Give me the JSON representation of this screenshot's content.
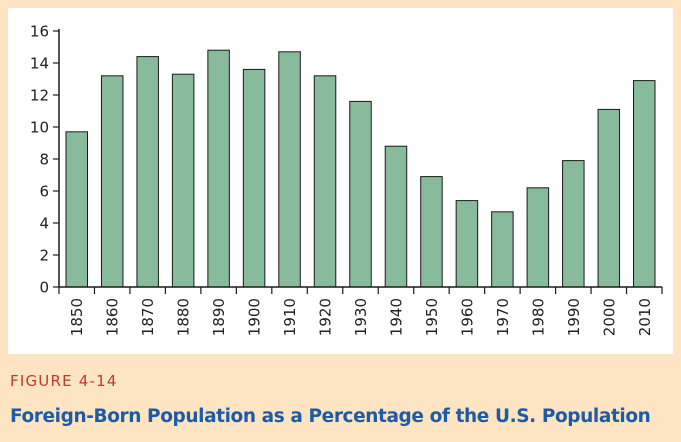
{
  "figure": {
    "number": "FIGURE 4-14",
    "caption": "Foreign-Born Population as a Percentage of the U.S. Population"
  },
  "colors": {
    "background": "#fde4c3",
    "bar_fill": "#88bb9b",
    "bar_stroke": "#1a1a1a",
    "figure_number": "#c0392b",
    "caption": "#1f5aa6"
  },
  "chart_data": {
    "type": "bar",
    "categories": [
      "1850",
      "1860",
      "1870",
      "1880",
      "1890",
      "1900",
      "1910",
      "1920",
      "1930",
      "1940",
      "1950",
      "1960",
      "1970",
      "1980",
      "1990",
      "2000",
      "2010"
    ],
    "values": [
      9.7,
      13.2,
      14.4,
      13.3,
      14.8,
      13.6,
      14.7,
      13.2,
      11.6,
      8.8,
      6.9,
      5.4,
      4.7,
      6.2,
      7.9,
      11.1,
      12.9
    ],
    "title": "",
    "xlabel": "",
    "ylabel": "",
    "ylim": [
      0,
      16
    ],
    "yticks": [
      0,
      2,
      4,
      6,
      8,
      10,
      12,
      14,
      16
    ],
    "grid": false,
    "legend": "none"
  }
}
